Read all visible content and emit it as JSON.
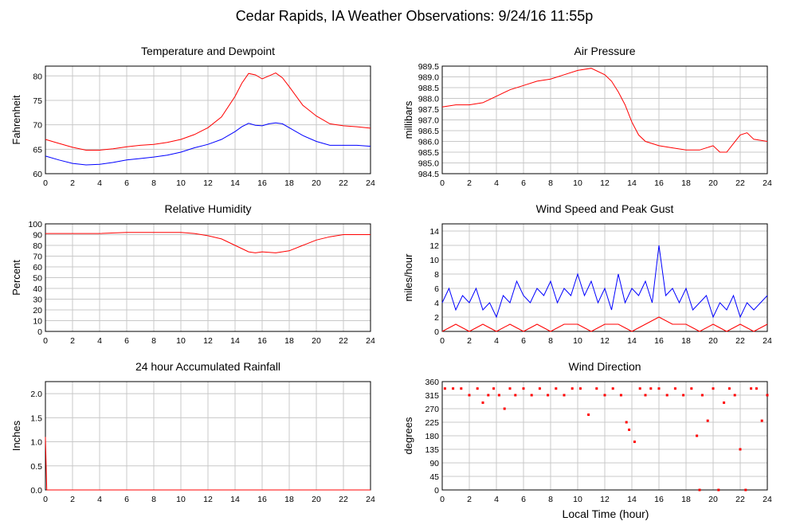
{
  "page_title": "Cedar Rapids, IA Weather Observations: 9/24/16 11:55p",
  "x_axis_label": "Local Time (hour)",
  "x_ticks": [
    "0",
    "2",
    "4",
    "6",
    "8",
    "10",
    "12",
    "14",
    "16",
    "18",
    "20",
    "22",
    "24"
  ],
  "colors": {
    "red": "#ff0000",
    "blue": "#0000ff",
    "grid": "#c8c8c8"
  },
  "chart_data": [
    {
      "type": "line",
      "title": "Temperature and Dewpoint",
      "ylabel": "Fahrenheit",
      "xlim": [
        0,
        24
      ],
      "ylim": [
        60,
        82
      ],
      "yticks": [
        "60",
        "65",
        "70",
        "75",
        "80"
      ],
      "grid": true,
      "series": [
        {
          "color": "red",
          "x": [
            0,
            1,
            2,
            3,
            4,
            5,
            6,
            7,
            8,
            9,
            10,
            11,
            12,
            13,
            14,
            14.5,
            15,
            15.5,
            16,
            16.5,
            17,
            17.5,
            18,
            19,
            20,
            21,
            22,
            23,
            24
          ],
          "values": [
            67,
            66.2,
            65.4,
            64.8,
            64.8,
            65.1,
            65.5,
            65.8,
            66.0,
            66.4,
            67.0,
            68.0,
            69.4,
            71.6,
            75.8,
            78.5,
            80.5,
            80.2,
            79.4,
            80.0,
            80.6,
            79.6,
            77.8,
            74.0,
            71.8,
            70.2,
            69.8,
            69.6,
            69.3
          ]
        },
        {
          "color": "blue",
          "x": [
            0,
            1,
            2,
            3,
            4,
            5,
            6,
            7,
            8,
            9,
            10,
            11,
            12,
            13,
            14,
            14.5,
            15,
            15.5,
            16,
            16.5,
            17,
            17.5,
            18,
            19,
            20,
            21,
            22,
            23,
            24
          ],
          "values": [
            63.6,
            62.8,
            62.1,
            61.8,
            61.9,
            62.3,
            62.8,
            63.1,
            63.4,
            63.8,
            64.4,
            65.3,
            66.0,
            67.0,
            68.6,
            69.6,
            70.3,
            69.9,
            69.8,
            70.2,
            70.4,
            70.2,
            69.4,
            67.8,
            66.6,
            65.8,
            65.8,
            65.8,
            65.6
          ]
        }
      ]
    },
    {
      "type": "line",
      "title": "Air Pressure",
      "ylabel": "millibars",
      "xlim": [
        0,
        24
      ],
      "ylim": [
        984.5,
        989.5
      ],
      "yticks": [
        "984.5",
        "985.0",
        "985.5",
        "986.0",
        "986.5",
        "987.0",
        "987.5",
        "988.0",
        "988.5",
        "989.0",
        "989.5"
      ],
      "grid": true,
      "series": [
        {
          "color": "red",
          "x": [
            0,
            1,
            2,
            3,
            4,
            5,
            6,
            7,
            8,
            9,
            10,
            11,
            12,
            12.5,
            13,
            13.5,
            14,
            14.5,
            15,
            16,
            17,
            18,
            19,
            20,
            20.5,
            21,
            21.5,
            22,
            22.5,
            23,
            24
          ],
          "values": [
            987.6,
            987.7,
            987.7,
            987.8,
            988.1,
            988.4,
            988.6,
            988.8,
            988.9,
            989.1,
            989.3,
            989.4,
            989.1,
            988.8,
            988.3,
            987.7,
            986.9,
            986.3,
            986.0,
            985.8,
            985.7,
            985.6,
            985.6,
            985.8,
            985.5,
            985.5,
            985.9,
            986.3,
            986.4,
            986.1,
            986.0
          ]
        }
      ]
    },
    {
      "type": "line",
      "title": "Relative Humidity",
      "ylabel": "Percent",
      "xlim": [
        0,
        24
      ],
      "ylim": [
        0,
        100
      ],
      "yticks": [
        "0",
        "10",
        "20",
        "30",
        "40",
        "50",
        "60",
        "70",
        "80",
        "90",
        "100"
      ],
      "grid": true,
      "series": [
        {
          "color": "red",
          "x": [
            0,
            2,
            4,
            6,
            8,
            10,
            11,
            12,
            13,
            14,
            15,
            15.5,
            16,
            17,
            18,
            19,
            20,
            21,
            22,
            23,
            24
          ],
          "values": [
            91,
            91,
            91,
            92,
            92,
            92,
            91,
            89,
            86,
            80,
            74,
            73,
            74,
            73,
            75,
            80,
            85,
            88,
            90,
            90,
            90
          ]
        }
      ]
    },
    {
      "type": "line",
      "title": "Wind Speed and Peak Gust",
      "ylabel": "miles/hour",
      "xlim": [
        0,
        24
      ],
      "ylim": [
        0,
        15
      ],
      "yticks": [
        "0",
        "2",
        "4",
        "6",
        "8",
        "10",
        "12",
        "14"
      ],
      "grid": true,
      "series": [
        {
          "color": "blue",
          "x": [
            0,
            0.5,
            1,
            1.5,
            2,
            2.5,
            3,
            3.5,
            4,
            4.5,
            5,
            5.5,
            6,
            6.5,
            7,
            7.5,
            8,
            8.5,
            9,
            9.5,
            10,
            10.5,
            11,
            11.5,
            12,
            12.5,
            13,
            13.5,
            14,
            14.5,
            15,
            15.5,
            16,
            16.5,
            17,
            17.5,
            18,
            18.5,
            19,
            19.5,
            20,
            20.5,
            21,
            21.5,
            22,
            22.5,
            23,
            23.5,
            24
          ],
          "values": [
            4,
            6,
            3,
            5,
            4,
            6,
            3,
            4,
            2,
            5,
            4,
            7,
            5,
            4,
            6,
            5,
            7,
            4,
            6,
            5,
            8,
            5,
            7,
            4,
            6,
            3,
            8,
            4,
            6,
            5,
            7,
            4,
            12,
            5,
            6,
            4,
            6,
            3,
            4,
            5,
            2,
            4,
            3,
            5,
            2,
            4,
            3,
            4,
            5
          ]
        },
        {
          "color": "red",
          "x": [
            0,
            1,
            2,
            3,
            4,
            5,
            6,
            7,
            8,
            9,
            10,
            11,
            12,
            13,
            14,
            15,
            16,
            17,
            18,
            19,
            20,
            21,
            22,
            23,
            24
          ],
          "values": [
            0,
            1,
            0,
            1,
            0,
            1,
            0,
            1,
            0,
            1,
            1,
            0,
            1,
            1,
            0,
            1,
            2,
            1,
            1,
            0,
            1,
            0,
            1,
            0,
            1
          ]
        }
      ]
    },
    {
      "type": "line",
      "title": "24 hour Accumulated Rainfall",
      "ylabel": "Inches",
      "xlim": [
        0,
        24
      ],
      "ylim": [
        0,
        2.25
      ],
      "yticks": [
        "0.0",
        "0.5",
        "1.0",
        "1.5",
        "2.0"
      ],
      "grid": true,
      "series": [
        {
          "color": "red",
          "x": [
            0,
            0.1,
            24
          ],
          "values": [
            1.1,
            0.0,
            0.0
          ]
        }
      ]
    },
    {
      "type": "scatter",
      "title": "Wind Direction",
      "ylabel": "degrees",
      "xlim": [
        0,
        24
      ],
      "ylim": [
        0,
        360
      ],
      "yticks": [
        "0",
        "45",
        "90",
        "135",
        "180",
        "225",
        "270",
        "315",
        "360"
      ],
      "grid": true,
      "series": [
        {
          "color": "red",
          "x": [
            0.2,
            0.8,
            1.4,
            2.0,
            2.6,
            3.0,
            3.4,
            3.8,
            4.2,
            4.6,
            5.0,
            5.4,
            6.0,
            6.6,
            7.2,
            7.8,
            8.4,
            9.0,
            9.6,
            10.2,
            10.8,
            11.4,
            12.0,
            12.6,
            13.2,
            13.6,
            13.8,
            14.2,
            14.6,
            15.0,
            15.4,
            16.0,
            16.6,
            17.2,
            17.8,
            18.4,
            18.8,
            19.0,
            19.2,
            19.6,
            20.0,
            20.4,
            20.8,
            21.2,
            21.6,
            22.0,
            22.4,
            22.8,
            23.2,
            23.6,
            24.0
          ],
          "values": [
            337,
            337,
            337,
            315,
            337,
            290,
            315,
            337,
            315,
            270,
            337,
            315,
            337,
            315,
            337,
            315,
            337,
            315,
            337,
            337,
            250,
            337,
            315,
            337,
            315,
            225,
            200,
            160,
            337,
            315,
            337,
            337,
            315,
            337,
            315,
            337,
            180,
            0,
            315,
            230,
            337,
            0,
            290,
            337,
            315,
            135,
            0,
            337,
            337,
            230,
            315
          ]
        }
      ]
    }
  ]
}
